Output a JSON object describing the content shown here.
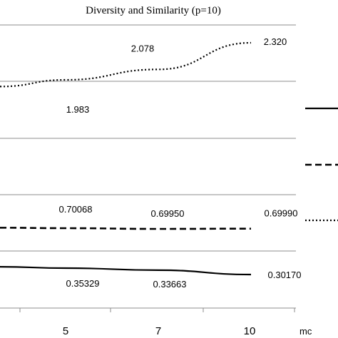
{
  "chart_data": {
    "type": "line",
    "title": "Diversity and Similarity (p=10)",
    "xlabel": "mc",
    "x_ticks": [
      "5",
      "7",
      "10"
    ],
    "grid": true,
    "legend_position": "right",
    "series": [
      {
        "style": "dotted",
        "color": "#000000",
        "points": [
          {
            "x": 5,
            "value": 1.983,
            "label": "1.983"
          },
          {
            "x": 7,
            "value": 2.078,
            "label": "2.078"
          },
          {
            "x": 10,
            "value": 2.32,
            "label": "2.320"
          }
        ]
      },
      {
        "style": "dashed",
        "color": "#000000",
        "points": [
          {
            "x": 5,
            "value": 0.70068,
            "label": "0.70068"
          },
          {
            "x": 7,
            "value": 0.6995,
            "label": "0.69950"
          },
          {
            "x": 10,
            "value": 0.6999,
            "label": "0.69990"
          }
        ]
      },
      {
        "style": "solid",
        "color": "#000000",
        "points": [
          {
            "x": 5,
            "value": 0.35329,
            "label": "0.35329"
          },
          {
            "x": 7,
            "value": 0.33663,
            "label": "0.33663"
          },
          {
            "x": 10,
            "value": 0.3017,
            "label": "0.30170"
          }
        ]
      }
    ]
  }
}
